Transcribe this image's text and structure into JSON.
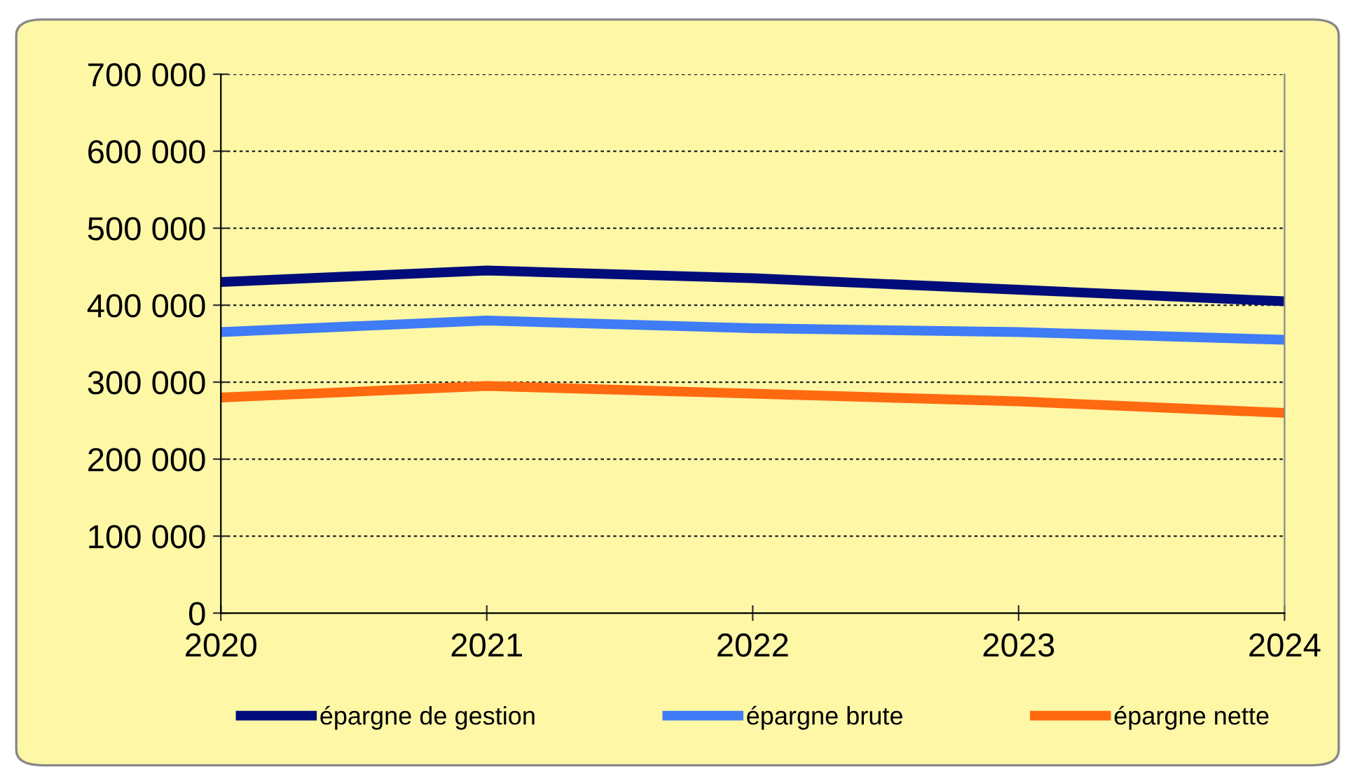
{
  "chart_data": {
    "type": "line",
    "x": [
      2020,
      2021,
      2022,
      2023,
      2024
    ],
    "series": [
      {
        "name": "épargne de gestion",
        "color": "#000c7a",
        "values": [
          430000,
          445000,
          435000,
          420000,
          405000
        ]
      },
      {
        "name": "épargne brute",
        "color": "#3f7cf5",
        "values": [
          365000,
          380000,
          370000,
          365000,
          355000
        ]
      },
      {
        "name": "épargne nette",
        "color": "#ff6a10",
        "values": [
          280000,
          295000,
          285000,
          275000,
          260000
        ]
      }
    ],
    "xlim": [
      2020,
      2024
    ],
    "xticks": [
      2020,
      2021,
      2022,
      2023,
      2024
    ],
    "ylim": [
      0,
      700000
    ],
    "yticks": [
      {
        "value": 0,
        "label": "0"
      },
      {
        "value": 100000,
        "label": "100 000"
      },
      {
        "value": 200000,
        "label": "200 000"
      },
      {
        "value": 300000,
        "label": "300 000"
      },
      {
        "value": 400000,
        "label": "400 000"
      },
      {
        "value": 500000,
        "label": "500 000"
      },
      {
        "value": 600000,
        "label": "600 000"
      },
      {
        "value": 700000,
        "label": "700 000"
      }
    ],
    "grid": "y",
    "legend": "bottom",
    "marker": "none",
    "line_style": "solid"
  }
}
